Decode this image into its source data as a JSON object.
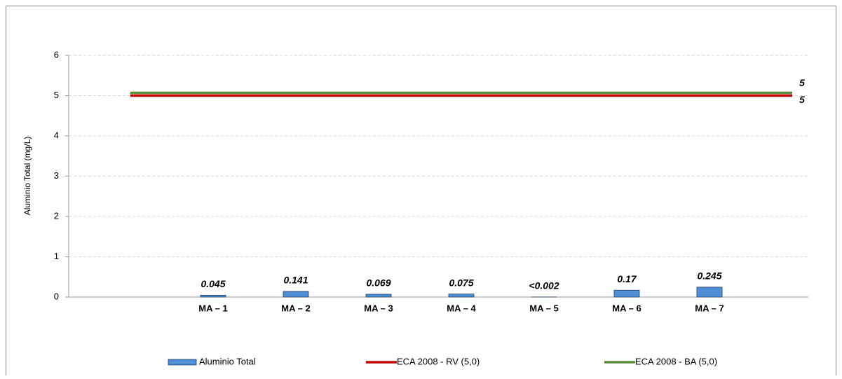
{
  "chart_data": {
    "type": "bar",
    "y_label": "Aluminio Total (mg/L)",
    "categories": [
      null,
      "MA – 1",
      "MA – 2",
      "MA – 3",
      "MA – 4",
      "MA – 5",
      "MA – 6",
      "MA – 7",
      null
    ],
    "series": [
      {
        "name": "Aluminio Total",
        "type": "bar",
        "color": "#4f8fd6",
        "values": [
          null,
          0.045,
          0.141,
          0.069,
          0.075,
          0.002,
          0.17,
          0.245,
          null
        ],
        "value_labels": [
          null,
          "0.045",
          "0.141",
          "0.069",
          "0.075",
          "<0.002",
          "0.17",
          "0.245",
          null
        ]
      },
      {
        "name": "ECA 2008 - RV (5,0)",
        "type": "line",
        "color": "#c00000",
        "values": [
          5,
          5,
          5,
          5,
          5,
          5,
          5,
          5,
          5
        ]
      },
      {
        "name": "ECA 2008 - BA (5,0)",
        "type": "line",
        "color": "#5a8a3c",
        "values": [
          5,
          5,
          5,
          5,
          5,
          5,
          5,
          5,
          5
        ]
      }
    ],
    "ylim": [
      0,
      6
    ],
    "yticks": [
      0,
      1,
      2,
      3,
      4,
      5,
      6
    ],
    "grid": true
  }
}
